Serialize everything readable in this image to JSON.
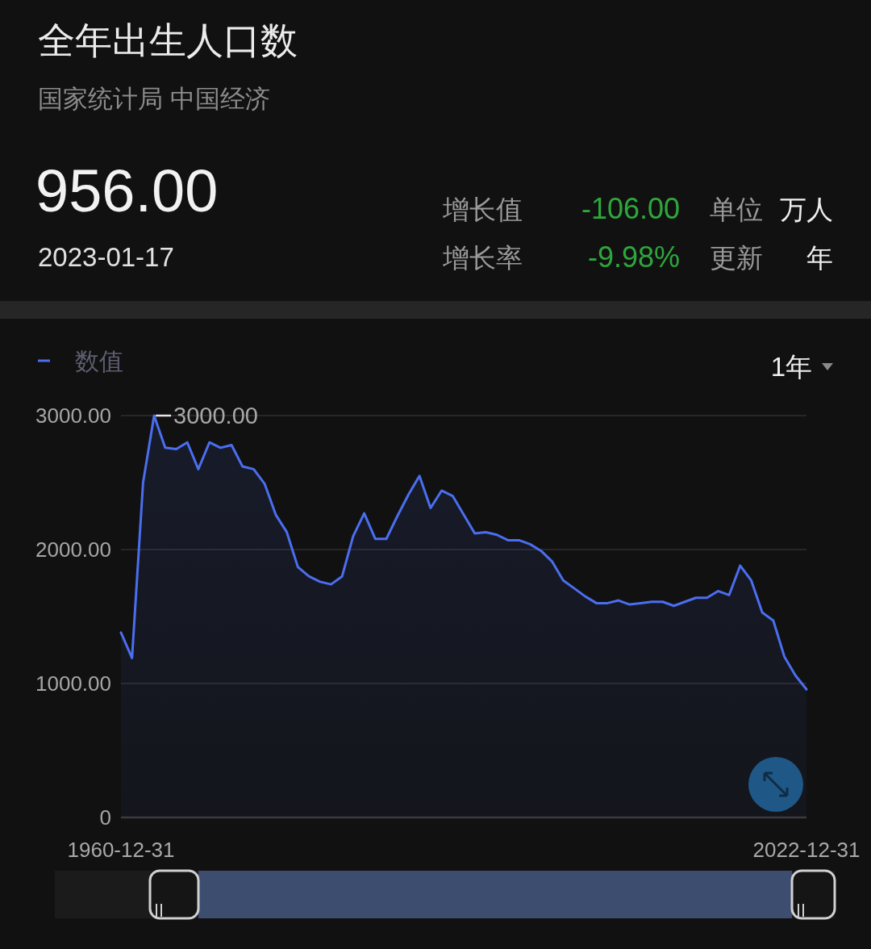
{
  "chart_data": [
    {
      "type": "other",
      "title": "全年出生人口数",
      "subtitle": "国家统计局 中国经济",
      "annotations": [
        "956.00",
        "2023-01-17",
        "增长值",
        "-106.00",
        "单位",
        "万人",
        "增长率",
        "-9.98%",
        "更新",
        "年"
      ]
    },
    {
      "type": "area",
      "x": [
        "1960-12-31",
        "1961-12-31",
        "1962-12-31",
        "1963-12-31",
        "1964-12-31",
        "1965-12-31",
        "1966-12-31",
        "1967-12-31",
        "1968-12-31",
        "1969-12-31",
        "1970-12-31",
        "1971-12-31",
        "1972-12-31",
        "1973-12-31",
        "1974-12-31",
        "1975-12-31",
        "1976-12-31",
        "1977-12-31",
        "1978-12-31",
        "1979-12-31",
        "1980-12-31",
        "1981-12-31",
        "1982-12-31",
        "1983-12-31",
        "1984-12-31",
        "1985-12-31",
        "1986-12-31",
        "1987-12-31",
        "1988-12-31",
        "1989-12-31",
        "1990-12-31",
        "1991-12-31",
        "1992-12-31",
        "1993-12-31",
        "1994-12-31",
        "1995-12-31",
        "1996-12-31",
        "1997-12-31",
        "1998-12-31",
        "1999-12-31",
        "2000-12-31",
        "2001-12-31",
        "2002-12-31",
        "2003-12-31",
        "2004-12-31",
        "2005-12-31",
        "2006-12-31",
        "2007-12-31",
        "2008-12-31",
        "2009-12-31",
        "2010-12-31",
        "2011-12-31",
        "2012-12-31",
        "2013-12-31",
        "2014-12-31",
        "2015-12-31",
        "2016-12-31",
        "2017-12-31",
        "2018-12-31",
        "2019-12-31",
        "2020-12-31",
        "2021-12-31",
        "2022-12-31"
      ],
      "series": [
        {
          "name": "数值",
          "color": "#4b6ef0",
          "values": [
            1380,
            1190,
            2500,
            3000,
            2760,
            2750,
            2800,
            2600,
            2800,
            2760,
            2780,
            2620,
            2600,
            2490,
            2260,
            2130,
            1870,
            1800,
            1760,
            1740,
            1800,
            2100,
            2270,
            2080,
            2080,
            2250,
            2410,
            2550,
            2310,
            2440,
            2400,
            2260,
            2120,
            2130,
            2110,
            2070,
            2070,
            2040,
            1990,
            1910,
            1770,
            1710,
            1650,
            1600,
            1600,
            1620,
            1590,
            1600,
            1610,
            1610,
            1580,
            1610,
            1640,
            1640,
            1690,
            1660,
            1880,
            1770,
            1530,
            1470,
            1200,
            1060,
            956
          ]
        }
      ],
      "xlim": [
        "1960-12-31",
        "2022-12-31"
      ],
      "xticks": [
        "1960-12-31",
        "2022-12-31"
      ],
      "ylim": [
        0,
        3000
      ],
      "yticks": [
        0,
        {
          "value": 1000,
          "label": "1000.00"
        },
        {
          "value": 2000,
          "label": "2000.00"
        },
        {
          "value": 3000,
          "label": "3000.00"
        }
      ],
      "grid": "y",
      "legend": "top left",
      "annotations": [
        {
          "text": "3000.00",
          "x": "1963-12-31",
          "y": 3000
        },
        "1年"
      ]
    }
  ]
}
